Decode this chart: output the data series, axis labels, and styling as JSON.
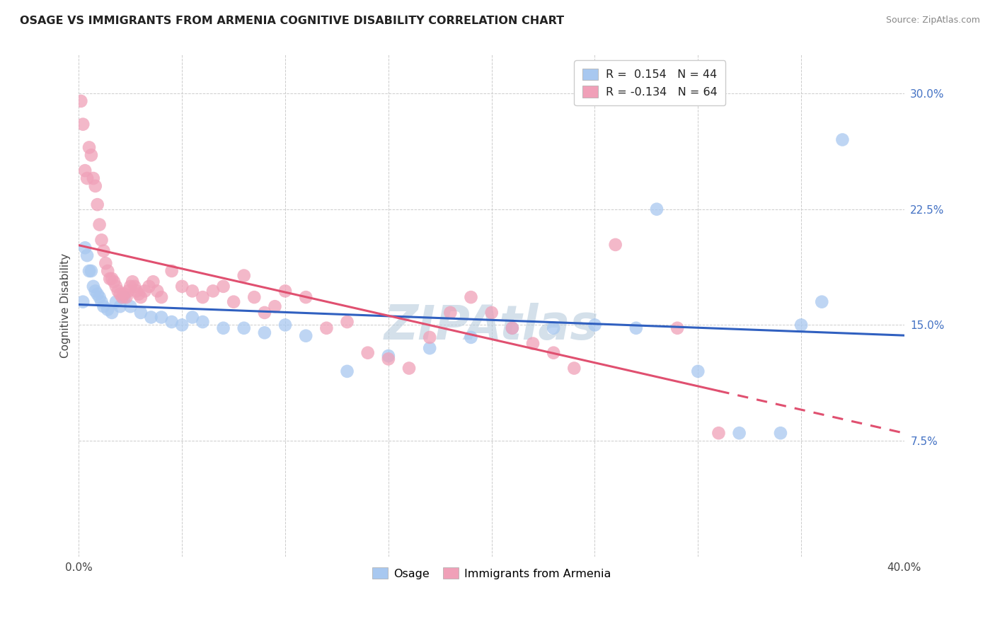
{
  "title": "OSAGE VS IMMIGRANTS FROM ARMENIA COGNITIVE DISABILITY CORRELATION CHART",
  "source": "Source: ZipAtlas.com",
  "ylabel": "Cognitive Disability",
  "xlim": [
    0.0,
    0.4
  ],
  "ylim": [
    0.0,
    0.325
  ],
  "xticks": [
    0.0,
    0.05,
    0.1,
    0.15,
    0.2,
    0.25,
    0.3,
    0.35,
    0.4
  ],
  "yticks": [
    0.0,
    0.075,
    0.15,
    0.225,
    0.3
  ],
  "osage_R": 0.154,
  "osage_N": 44,
  "armenia_R": -0.134,
  "armenia_N": 64,
  "legend_label_1": "Osage",
  "legend_label_2": "Immigrants from Armenia",
  "blue_color": "#a8c8f0",
  "pink_color": "#f0a0b8",
  "blue_line_color": "#3060c0",
  "pink_line_color": "#e05070",
  "watermark": "ZIPAtlas",
  "osage_x": [
    0.002,
    0.003,
    0.004,
    0.005,
    0.006,
    0.007,
    0.008,
    0.009,
    0.01,
    0.011,
    0.012,
    0.014,
    0.016,
    0.018,
    0.02,
    0.022,
    0.025,
    0.03,
    0.035,
    0.04,
    0.045,
    0.05,
    0.055,
    0.06,
    0.07,
    0.08,
    0.09,
    0.1,
    0.11,
    0.13,
    0.15,
    0.17,
    0.19,
    0.21,
    0.23,
    0.25,
    0.27,
    0.28,
    0.3,
    0.32,
    0.34,
    0.35,
    0.36,
    0.37
  ],
  "osage_y": [
    0.165,
    0.2,
    0.195,
    0.185,
    0.185,
    0.175,
    0.172,
    0.17,
    0.168,
    0.165,
    0.162,
    0.16,
    0.158,
    0.165,
    0.162,
    0.168,
    0.162,
    0.158,
    0.155,
    0.155,
    0.152,
    0.15,
    0.155,
    0.152,
    0.148,
    0.148,
    0.145,
    0.15,
    0.143,
    0.12,
    0.13,
    0.135,
    0.142,
    0.148,
    0.148,
    0.15,
    0.148,
    0.225,
    0.12,
    0.08,
    0.08,
    0.15,
    0.165,
    0.27
  ],
  "armenia_x": [
    0.001,
    0.002,
    0.003,
    0.004,
    0.005,
    0.006,
    0.007,
    0.008,
    0.009,
    0.01,
    0.011,
    0.012,
    0.013,
    0.014,
    0.015,
    0.016,
    0.017,
    0.018,
    0.019,
    0.02,
    0.021,
    0.022,
    0.023,
    0.024,
    0.025,
    0.026,
    0.027,
    0.028,
    0.029,
    0.03,
    0.032,
    0.034,
    0.036,
    0.038,
    0.04,
    0.045,
    0.05,
    0.055,
    0.06,
    0.065,
    0.07,
    0.075,
    0.08,
    0.085,
    0.09,
    0.095,
    0.1,
    0.11,
    0.12,
    0.13,
    0.14,
    0.15,
    0.16,
    0.17,
    0.18,
    0.19,
    0.2,
    0.21,
    0.22,
    0.23,
    0.24,
    0.26,
    0.29,
    0.31
  ],
  "armenia_y": [
    0.295,
    0.28,
    0.25,
    0.245,
    0.265,
    0.26,
    0.245,
    0.24,
    0.228,
    0.215,
    0.205,
    0.198,
    0.19,
    0.185,
    0.18,
    0.18,
    0.178,
    0.175,
    0.172,
    0.17,
    0.168,
    0.17,
    0.168,
    0.172,
    0.175,
    0.178,
    0.175,
    0.172,
    0.17,
    0.168,
    0.172,
    0.175,
    0.178,
    0.172,
    0.168,
    0.185,
    0.175,
    0.172,
    0.168,
    0.172,
    0.175,
    0.165,
    0.182,
    0.168,
    0.158,
    0.162,
    0.172,
    0.168,
    0.148,
    0.152,
    0.132,
    0.128,
    0.122,
    0.142,
    0.158,
    0.168,
    0.158,
    0.148,
    0.138,
    0.132,
    0.122,
    0.202,
    0.148,
    0.08
  ]
}
